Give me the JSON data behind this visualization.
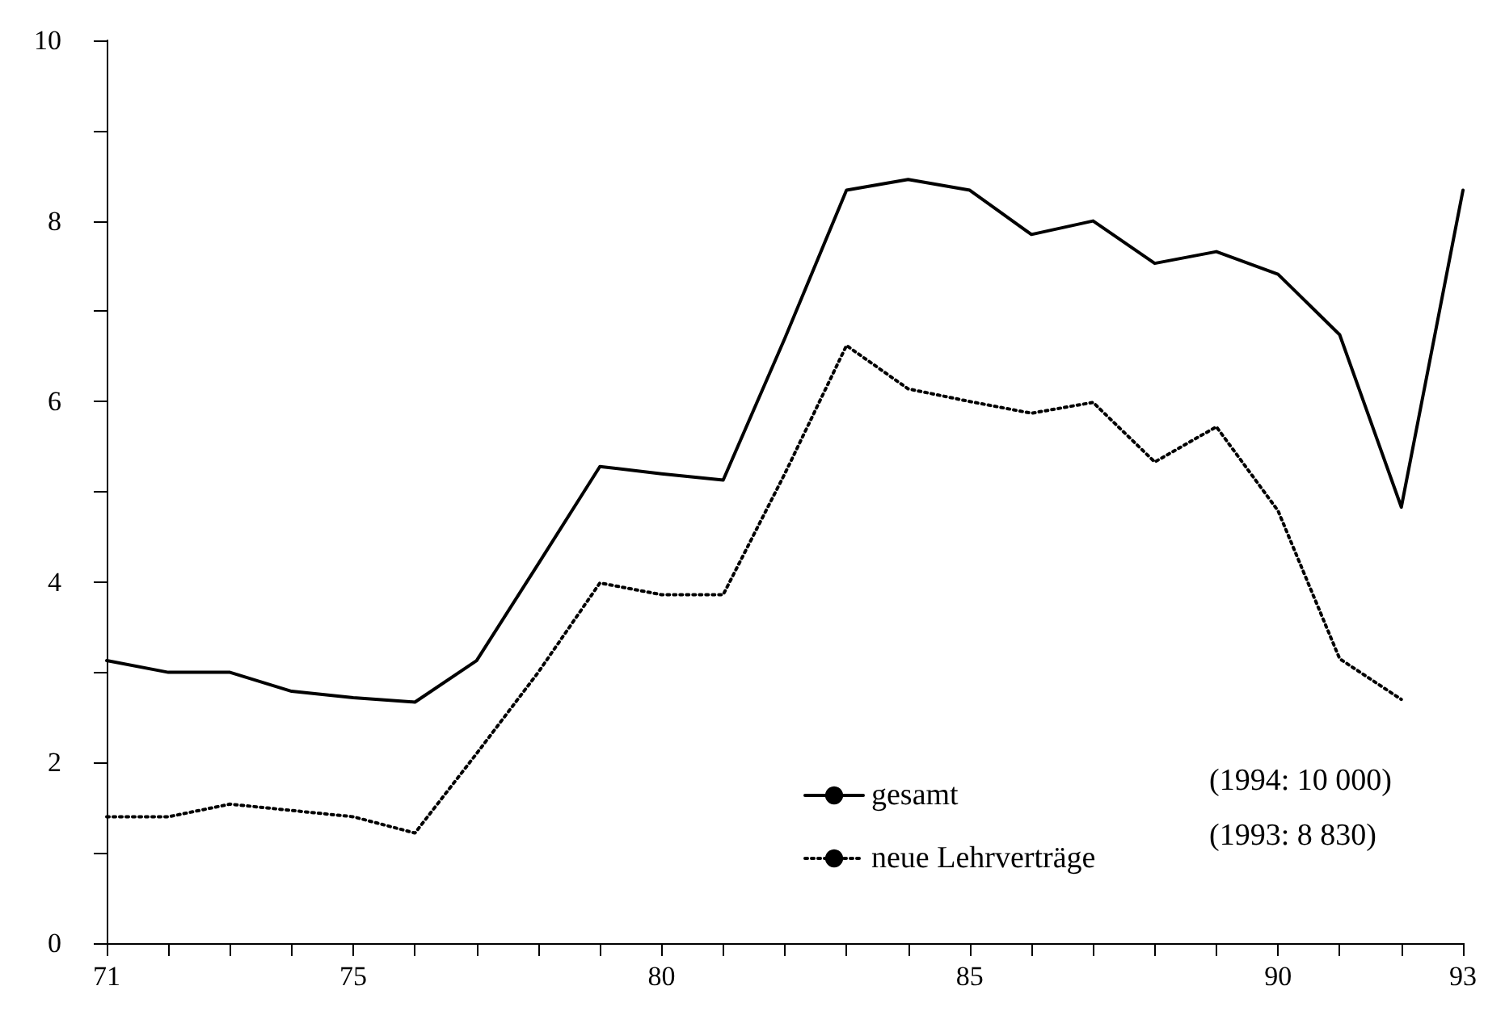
{
  "chart_data": {
    "type": "line",
    "x": [
      71,
      72,
      73,
      74,
      75,
      76,
      77,
      78,
      79,
      80,
      81,
      82,
      83,
      84,
      85,
      86,
      87,
      88,
      89,
      90,
      91,
      92,
      93
    ],
    "series": [
      {
        "name": "gesamt",
        "color": "#000000",
        "line_style": "solid",
        "values": [
          3.13,
          3.0,
          3.0,
          2.79,
          2.72,
          2.67,
          3.13,
          4.2,
          5.28,
          5.2,
          5.13,
          6.7,
          8.34,
          8.46,
          8.34,
          7.85,
          8.0,
          7.53,
          7.66,
          7.41,
          6.74,
          4.83,
          8.34
        ]
      },
      {
        "name": "neue Lehrverträge",
        "color": "#000000",
        "line_style": "dotted",
        "values": [
          1.4,
          1.4,
          1.54,
          1.47,
          1.4,
          1.22,
          2.1,
          3.0,
          3.99,
          3.86,
          3.86,
          5.2,
          6.62,
          6.14,
          6.0,
          5.87,
          5.99,
          5.33,
          5.72,
          4.79,
          3.15,
          2.7,
          null
        ]
      }
    ],
    "xlim": [
      71,
      93
    ],
    "xticks": [
      71,
      {
        "value": 72,
        "label": null
      },
      {
        "value": 73,
        "label": null
      },
      {
        "value": 74,
        "label": null
      },
      75,
      {
        "value": 76,
        "label": null
      },
      {
        "value": 77,
        "label": null
      },
      {
        "value": 78,
        "label": null
      },
      {
        "value": 79,
        "label": null
      },
      80,
      {
        "value": 81,
        "label": null
      },
      {
        "value": 82,
        "label": null
      },
      {
        "value": 83,
        "label": null
      },
      {
        "value": 84,
        "label": null
      },
      85,
      {
        "value": 86,
        "label": null
      },
      {
        "value": 87,
        "label": null
      },
      {
        "value": 88,
        "label": null
      },
      {
        "value": 89,
        "label": null
      },
      90,
      {
        "value": 91,
        "label": null
      },
      {
        "value": 92,
        "label": null
      },
      93
    ],
    "ylim": [
      0,
      10
    ],
    "yticks": [
      0,
      {
        "value": 1,
        "label": null
      },
      2,
      {
        "value": 3,
        "label": null
      },
      4,
      {
        "value": 5,
        "label": null
      },
      6,
      {
        "value": 7,
        "label": null
      },
      8,
      {
        "value": 9,
        "label": null
      },
      10
    ],
    "grid": false,
    "legend": "bottom right",
    "marker": "none",
    "annotations": [
      "(1994: 10 000)",
      "(1993: 8 830)"
    ]
  }
}
